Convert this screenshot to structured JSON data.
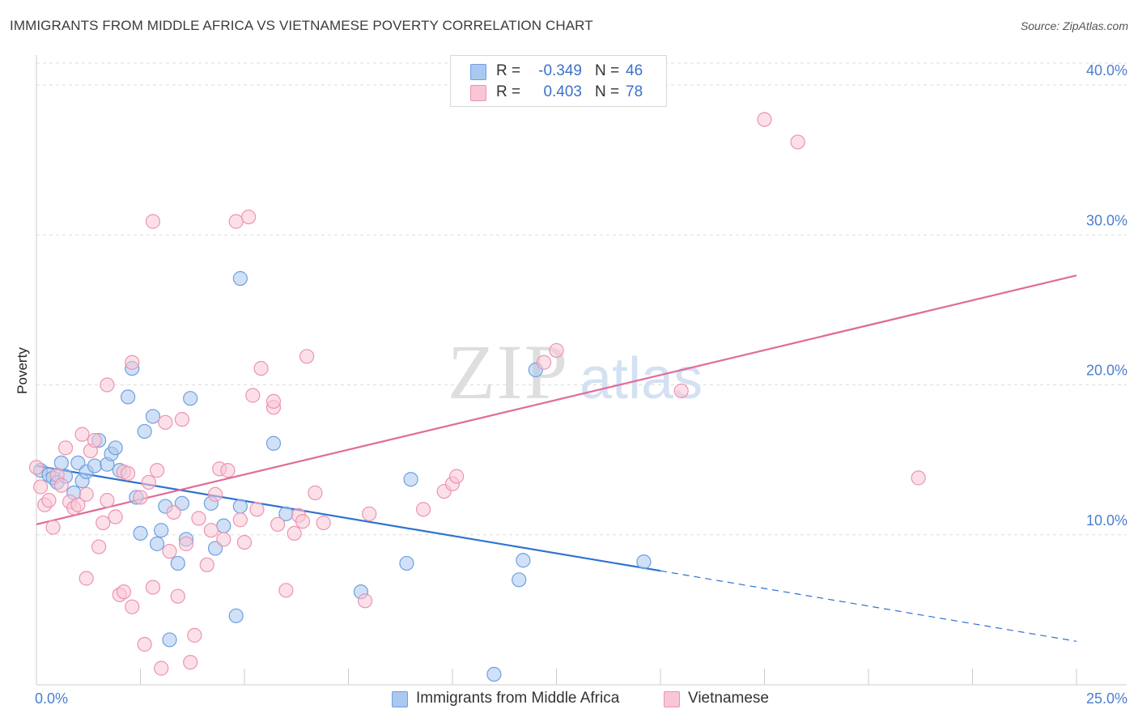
{
  "title": "IMMIGRANTS FROM MIDDLE AFRICA VS VIETNAMESE POVERTY CORRELATION CHART",
  "source": "Source: ZipAtlas.com",
  "watermark": {
    "zip": "ZIP",
    "atlas": "atlas"
  },
  "legend": {
    "rows": [
      {
        "r_label": "R =",
        "r_value": "-0.349",
        "n_label": "N =",
        "n_value": "46",
        "color": "#aac8f0",
        "border": "#6f9fe0"
      },
      {
        "r_label": "R =",
        "r_value": "0.403",
        "n_label": "N =",
        "n_value": "78",
        "color": "#f9c6d5",
        "border": "#ec94b0"
      }
    ]
  },
  "bottom_legend": [
    {
      "label": "Immigrants from Middle Africa",
      "color": "#aac8f0",
      "border": "#6f9fe0"
    },
    {
      "label": "Vietnamese",
      "color": "#f9c6d5",
      "border": "#ec94b0"
    }
  ],
  "chart_data": {
    "type": "scatter",
    "ylabel": "Poverty",
    "xlabel": "",
    "xlim": [
      0,
      25
    ],
    "ylim": [
      0,
      42
    ],
    "x_tick_labels": [
      {
        "value": 0,
        "label": "0.0%"
      },
      {
        "value": 25,
        "label": "25.0%"
      }
    ],
    "y_tick_labels": [
      {
        "value": 10,
        "label": "10.0%"
      },
      {
        "value": 20,
        "label": "20.0%"
      },
      {
        "value": 30,
        "label": "30.0%"
      },
      {
        "value": 40,
        "label": "40.0%"
      }
    ],
    "x_minor_ticks": [
      2.5,
      5,
      7.5,
      10,
      12.5,
      15,
      17.5,
      20,
      22.5,
      25
    ],
    "grid": true,
    "series": [
      {
        "name": "Immigrants from Middle Africa",
        "color": "#6f9fe0",
        "fill": "#aac8f0",
        "line_color": "#2f72cf",
        "trend": {
          "x0": 0,
          "y0": 14.6,
          "x1": 15.0,
          "y1": 7.6,
          "dash_to_x": 25,
          "dash_to_y": 2.9
        },
        "points": [
          [
            0.1,
            14.3
          ],
          [
            0.3,
            14.0
          ],
          [
            0.4,
            13.8
          ],
          [
            0.5,
            13.5
          ],
          [
            0.6,
            14.8
          ],
          [
            0.7,
            13.9
          ],
          [
            0.9,
            12.8
          ],
          [
            1.0,
            14.8
          ],
          [
            1.1,
            13.6
          ],
          [
            1.2,
            14.2
          ],
          [
            1.4,
            14.6
          ],
          [
            1.5,
            16.3
          ],
          [
            1.7,
            14.7
          ],
          [
            1.8,
            15.4
          ],
          [
            1.9,
            15.8
          ],
          [
            2.0,
            14.3
          ],
          [
            2.2,
            19.2
          ],
          [
            2.3,
            21.1
          ],
          [
            2.4,
            12.5
          ],
          [
            2.5,
            10.1
          ],
          [
            2.6,
            16.9
          ],
          [
            2.8,
            17.9
          ],
          [
            2.9,
            9.4
          ],
          [
            3.0,
            10.3
          ],
          [
            3.1,
            11.9
          ],
          [
            3.2,
            3.0
          ],
          [
            3.4,
            8.1
          ],
          [
            3.5,
            12.1
          ],
          [
            3.6,
            9.7
          ],
          [
            3.7,
            19.1
          ],
          [
            4.2,
            12.1
          ],
          [
            4.3,
            9.1
          ],
          [
            4.5,
            10.6
          ],
          [
            4.8,
            4.6
          ],
          [
            4.9,
            11.9
          ],
          [
            4.9,
            27.1
          ],
          [
            5.7,
            16.1
          ],
          [
            6.0,
            11.4
          ],
          [
            7.8,
            6.2
          ],
          [
            8.9,
            8.1
          ],
          [
            9.0,
            13.7
          ],
          [
            11.0,
            0.7
          ],
          [
            11.6,
            7.0
          ],
          [
            11.7,
            8.3
          ],
          [
            12.0,
            21.0
          ],
          [
            14.6,
            8.2
          ]
        ]
      },
      {
        "name": "Vietnamese",
        "color": "#ec94b0",
        "fill": "#f9c6d5",
        "line_color": "#e06b98",
        "trend": {
          "x0": 0,
          "y0": 10.7,
          "x1": 25,
          "y1": 27.3
        },
        "points": [
          [
            0.0,
            14.5
          ],
          [
            0.1,
            13.2
          ],
          [
            0.2,
            12.0
          ],
          [
            0.3,
            12.3
          ],
          [
            0.4,
            10.5
          ],
          [
            0.5,
            14.0
          ],
          [
            0.6,
            13.3
          ],
          [
            0.7,
            15.8
          ],
          [
            0.8,
            12.2
          ],
          [
            0.9,
            11.8
          ],
          [
            1.0,
            12.0
          ],
          [
            1.1,
            16.7
          ],
          [
            1.2,
            12.7
          ],
          [
            1.2,
            7.1
          ],
          [
            1.3,
            15.6
          ],
          [
            1.4,
            16.3
          ],
          [
            1.5,
            9.2
          ],
          [
            1.6,
            10.8
          ],
          [
            1.7,
            12.3
          ],
          [
            1.7,
            20.0
          ],
          [
            1.9,
            11.2
          ],
          [
            2.0,
            6.0
          ],
          [
            2.1,
            14.2
          ],
          [
            2.1,
            6.2
          ],
          [
            2.2,
            14.1
          ],
          [
            2.3,
            5.2
          ],
          [
            2.3,
            21.5
          ],
          [
            2.5,
            12.5
          ],
          [
            2.6,
            2.7
          ],
          [
            2.7,
            13.5
          ],
          [
            2.8,
            6.5
          ],
          [
            2.8,
            30.9
          ],
          [
            2.9,
            14.3
          ],
          [
            3.0,
            1.1
          ],
          [
            3.1,
            17.5
          ],
          [
            3.2,
            8.9
          ],
          [
            3.3,
            11.5
          ],
          [
            3.4,
            5.9
          ],
          [
            3.5,
            17.7
          ],
          [
            3.6,
            9.4
          ],
          [
            3.7,
            1.5
          ],
          [
            3.8,
            3.3
          ],
          [
            3.9,
            11.1
          ],
          [
            4.1,
            8.0
          ],
          [
            4.2,
            10.3
          ],
          [
            4.3,
            12.7
          ],
          [
            4.4,
            14.4
          ],
          [
            4.5,
            9.7
          ],
          [
            4.6,
            14.3
          ],
          [
            4.8,
            30.9
          ],
          [
            4.9,
            11.0
          ],
          [
            5.0,
            9.5
          ],
          [
            5.1,
            31.2
          ],
          [
            5.2,
            19.3
          ],
          [
            5.3,
            11.7
          ],
          [
            5.4,
            21.1
          ],
          [
            5.7,
            18.5
          ],
          [
            5.7,
            18.9
          ],
          [
            5.8,
            10.7
          ],
          [
            6.0,
            6.3
          ],
          [
            6.2,
            10.1
          ],
          [
            6.3,
            11.3
          ],
          [
            6.4,
            10.9
          ],
          [
            6.5,
            21.9
          ],
          [
            6.7,
            12.8
          ],
          [
            6.9,
            10.8
          ],
          [
            7.9,
            5.6
          ],
          [
            8.0,
            11.4
          ],
          [
            9.3,
            11.7
          ],
          [
            9.8,
            12.9
          ],
          [
            10.0,
            13.4
          ],
          [
            10.1,
            13.9
          ],
          [
            12.2,
            21.5
          ],
          [
            12.5,
            22.3
          ],
          [
            15.5,
            19.6
          ],
          [
            17.5,
            37.7
          ],
          [
            18.3,
            36.2
          ],
          [
            21.2,
            13.8
          ]
        ]
      }
    ]
  }
}
